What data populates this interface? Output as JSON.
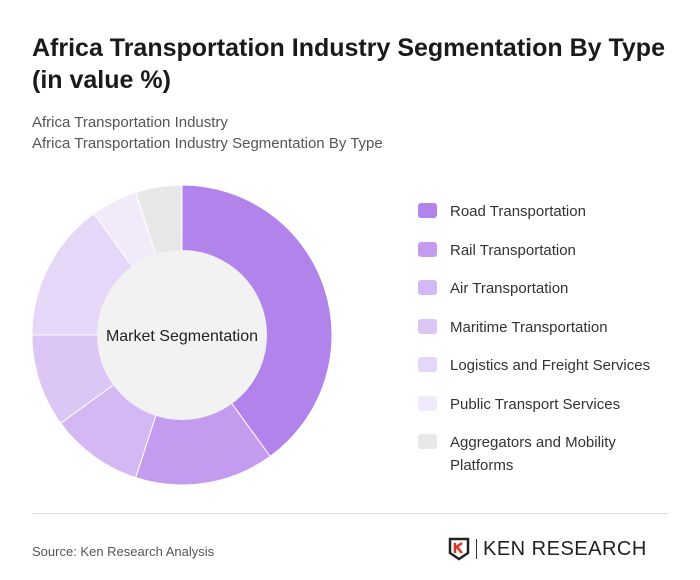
{
  "title": "Africa Transportation Industry Segmentation By Type (in value %)",
  "subtitle1": "Africa Transportation Industry",
  "subtitle2": "Africa Transportation Industry Segmentation By Type",
  "source": "Source: Ken Research Analysis",
  "logo_text": "KEN RESEARCH",
  "chart_data": {
    "type": "pie",
    "variant": "donut",
    "center_label": "Market Segmentation",
    "legend_position": "right",
    "categories": [
      "Road Transportation",
      "Rail Transportation",
      "Air Transportation",
      "Maritime Transportation",
      "Logistics and Freight Services",
      "Public Transport Services",
      "Aggregators and Mobility Platforms"
    ],
    "values": [
      40,
      15,
      10,
      10,
      15,
      5,
      5
    ],
    "colors": [
      "#b383ec",
      "#c39cef",
      "#d4b8f4",
      "#dcc6f5",
      "#e6d7f8",
      "#f1eafb",
      "#e8e8e8"
    ]
  }
}
